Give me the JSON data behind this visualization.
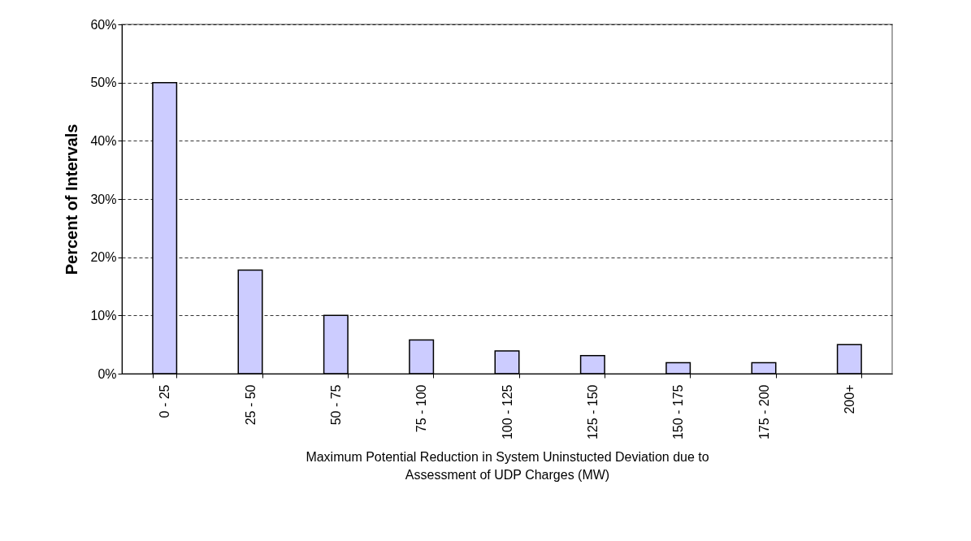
{
  "chart_data": {
    "type": "bar",
    "categories": [
      "0 - 25",
      "25 - 50",
      "50 - 75",
      "75 - 100",
      "100 - 125",
      "125 - 150",
      "150 - 175",
      "175 - 200",
      "200+"
    ],
    "values": [
      50,
      17.8,
      10,
      5.8,
      3.9,
      3.1,
      1.9,
      1.9,
      5.0
    ],
    "color": "#ccccff",
    "xlabel": "Maximum Potential Reduction in System Uninstucted Deviation due to\nAssessment of UDP Charges (MW)",
    "ylabel": "Percent of Intervals",
    "ylim": [
      0,
      60
    ],
    "yticks": [
      {
        "value": 0,
        "label": "0%"
      },
      {
        "value": 10,
        "label": "10%"
      },
      {
        "value": 20,
        "label": "20%"
      },
      {
        "value": 30,
        "label": "30%"
      },
      {
        "value": 40,
        "label": "40%"
      },
      {
        "value": 50,
        "label": "50%"
      },
      {
        "value": 60,
        "label": "60%"
      }
    ],
    "grid": "y",
    "line_style": "dashed"
  }
}
